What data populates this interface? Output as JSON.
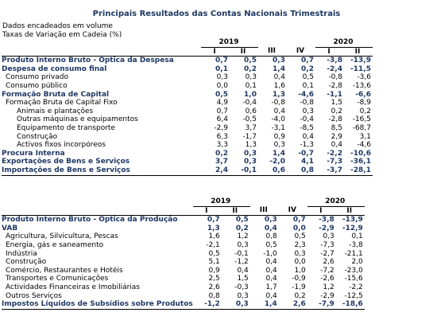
{
  "title": "Principais Resultados das Contas Nacionais Trimestrais",
  "subtitle1": "Dados encadeados em volume",
  "subtitle2": "Taxas de Variação em Cadeia (%)",
  "table1": {
    "years": [
      "2019",
      "2020"
    ],
    "quarters": [
      "I",
      "II",
      "III",
      "IV",
      "I",
      "II"
    ],
    "rows": [
      {
        "label": "Produto Interno Bruto - Óptica da Despesa",
        "values": [
          "0,7",
          "0,5",
          "0,3",
          "0,7",
          "-3,8",
          "-13,9"
        ],
        "style": "main"
      },
      {
        "label": "Despesa de consumo final",
        "values": [
          "0,1",
          "0,2",
          "1,4",
          "0,2",
          "-2,4",
          "-11,5"
        ],
        "style": "main"
      },
      {
        "label": "Consumo privado",
        "values": [
          "0,3",
          "0,3",
          "0,4",
          "0,5",
          "-0,8",
          "-3,6"
        ],
        "style": "i1"
      },
      {
        "label": "Consumo público",
        "values": [
          "0,0",
          "0,1",
          "1,6",
          "0,1",
          "-2,8",
          "-13,6"
        ],
        "style": "i1"
      },
      {
        "label": "Formação Bruta de Capital",
        "values": [
          "0,5",
          "1,0",
          "1,3",
          "-4,6",
          "-1,1",
          "-6,6"
        ],
        "style": "main"
      },
      {
        "label": "Formação Bruta de Capital Fixo",
        "values": [
          "4,9",
          "-0,4",
          "-0,8",
          "-0,8",
          "1,5",
          "-8,9"
        ],
        "style": "i1"
      },
      {
        "label": "Animais e plantações",
        "values": [
          "0,7",
          "0,6",
          "0,4",
          "0,3",
          "0,2",
          "0,2"
        ],
        "style": "i2"
      },
      {
        "label": "Outras máquinas e equipamentos",
        "values": [
          "6,4",
          "-0,5",
          "-4,0",
          "-0,4",
          "-2,8",
          "-16,5"
        ],
        "style": "i2"
      },
      {
        "label": "Equipamento de transporte",
        "values": [
          "-2,9",
          "3,7",
          "-3,1",
          "-8,5",
          "8,5",
          "-68,7"
        ],
        "style": "i2"
      },
      {
        "label": "Construção",
        "values": [
          "6,3",
          "-1,7",
          "0,9",
          "0,4",
          "2,9",
          "3,1"
        ],
        "style": "i2"
      },
      {
        "label": "Activos fixos incorpóreos",
        "values": [
          "3,3",
          "1,3",
          "0,3",
          "-1,3",
          "0,4",
          "-4,6"
        ],
        "style": "i2"
      },
      {
        "label": "Procura Interna",
        "values": [
          "0,2",
          "0,3",
          "1,4",
          "-0,7",
          "-2,2",
          "-10,6"
        ],
        "style": "main"
      },
      {
        "label": "Exportações de Bens e Serviços",
        "values": [
          "3,7",
          "0,3",
          "-2,0",
          "4,1",
          "-7,3",
          "-36,1"
        ],
        "style": "main"
      },
      {
        "label": "Importações de Bens e Serviços",
        "values": [
          "2,4",
          "-0,1",
          "0,6",
          "0,8",
          "-3,7",
          "-28,1"
        ],
        "style": "main"
      }
    ]
  },
  "table2": {
    "years": [
      "2019",
      "2020"
    ],
    "quarters": [
      "I",
      "II",
      "III",
      "IV",
      "I",
      "II"
    ],
    "rows": [
      {
        "label": "Produto Interno Bruto - Óptica da Produção",
        "values": [
          "0,7",
          "0,5",
          "0,3",
          "0,7",
          "-3,8",
          "-13,9"
        ],
        "style": "main"
      },
      {
        "label": "VAB",
        "values": [
          "1,3",
          "0,2",
          "0,4",
          "0,0",
          "-2,9",
          "-12,9"
        ],
        "style": "main"
      },
      {
        "label": "Agricultura, Silvicultura, Pescas",
        "values": [
          "1,6",
          "1,2",
          "0,8",
          "0,5",
          "0,3",
          "0,1"
        ],
        "style": "i1"
      },
      {
        "label": "Energia, gás e saneamento",
        "values": [
          "-2,1",
          "0,3",
          "0,5",
          "2,3",
          "-7,3",
          "-3,8"
        ],
        "style": "i1"
      },
      {
        "label": "Indústria",
        "values": [
          "0,5",
          "-0,1",
          "-1,0",
          "0,3",
          "-2,7",
          "-21,1"
        ],
        "style": "i1"
      },
      {
        "label": "Construção",
        "values": [
          "5,1",
          "-1,2",
          "0,4",
          "0,0",
          "2,6",
          "2,0"
        ],
        "style": "i1"
      },
      {
        "label": "Comércio, Restaurantes e Hotéis",
        "values": [
          "0,9",
          "0,4",
          "0,4",
          "1,0",
          "-7,2",
          "-23,0"
        ],
        "style": "i1"
      },
      {
        "label": "Transportes e Comunicações",
        "values": [
          "2,5",
          "1,5",
          "0,4",
          "-0,9",
          "-2,6",
          "-15,6"
        ],
        "style": "i1"
      },
      {
        "label": "Actividades Financeiras e Imobiliárias",
        "values": [
          "2,6",
          "-0,3",
          "1,7",
          "-1,9",
          "1,2",
          "-2,2"
        ],
        "style": "i1"
      },
      {
        "label": "Outros Serviços",
        "values": [
          "0,8",
          "0,3",
          "0,4",
          "0,2",
          "-2,9",
          "-12,5"
        ],
        "style": "i1"
      },
      {
        "label": "Impostos Líquidos de Subsídios sobre Produtos",
        "values": [
          "-1,2",
          "0,3",
          "1,4",
          "2,6",
          "-7,9",
          "-18,6"
        ],
        "style": "main"
      }
    ]
  }
}
